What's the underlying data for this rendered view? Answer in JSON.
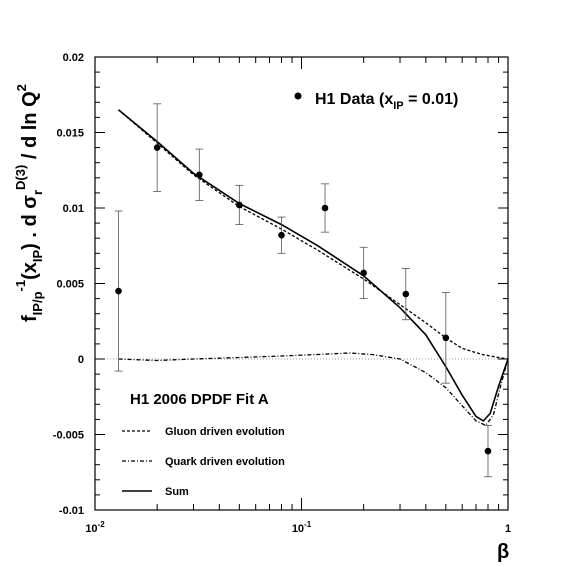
{
  "chart_data": {
    "type": "scatter",
    "title": "",
    "xlabel": "β",
    "ylabel_parts": {
      "f": "f",
      "f_sub": "IP/p",
      "inv": "-1",
      "arg_open": "(x",
      "arg_sub": "IP",
      "arg_close": ") . d σ",
      "sigma_sub": "r",
      "sigma_sup": "D(3)",
      "tail": " / d ln Q",
      "tail_sup": "2"
    },
    "x_scale": "log",
    "xlim": [
      0.01,
      1
    ],
    "ylim": [
      -0.01,
      0.02
    ],
    "x_ticks": [
      {
        "base": "10",
        "exp": "-2"
      },
      {
        "base": "10",
        "exp": "-1"
      },
      {
        "base": "1",
        "exp": ""
      }
    ],
    "y_ticks": [
      "-0.01",
      "-0.005",
      "0",
      "0.005",
      "0.01",
      "0.015",
      "0.02"
    ],
    "y_tick_values": [
      -0.01,
      -0.005,
      0,
      0.005,
      0.01,
      0.015,
      0.02
    ],
    "data_legend": {
      "main": "H1 Data (x",
      "sub": "IP",
      "rest": " = 0.01)"
    },
    "fit_label": "H1 2006 DPDF Fit A",
    "series_names": {
      "gluon": "Gluon driven evolution",
      "quark": "Quark driven evolution",
      "sum": "Sum"
    },
    "data_points": [
      {
        "x": 0.013,
        "y": 0.0045,
        "err": 0.0053
      },
      {
        "x": 0.02,
        "y": 0.014,
        "err": 0.0029
      },
      {
        "x": 0.032,
        "y": 0.0122,
        "err": 0.0017
      },
      {
        "x": 0.05,
        "y": 0.0102,
        "err": 0.0013
      },
      {
        "x": 0.08,
        "y": 0.0082,
        "err": 0.0012
      },
      {
        "x": 0.13,
        "y": 0.01,
        "err": 0.0016
      },
      {
        "x": 0.2,
        "y": 0.0057,
        "err": 0.0017
      },
      {
        "x": 0.32,
        "y": 0.0043,
        "err": 0.0017
      },
      {
        "x": 0.5,
        "y": 0.0014,
        "err": 0.003
      },
      {
        "x": 0.8,
        "y": -0.0061,
        "err": 0.0017
      }
    ],
    "gluon_curve": [
      {
        "x": 0.013,
        "y": 0.0165
      },
      {
        "x": 0.02,
        "y": 0.0143
      },
      {
        "x": 0.03,
        "y": 0.0122
      },
      {
        "x": 0.05,
        "y": 0.0101
      },
      {
        "x": 0.08,
        "y": 0.0086
      },
      {
        "x": 0.12,
        "y": 0.0072
      },
      {
        "x": 0.2,
        "y": 0.0053
      },
      {
        "x": 0.3,
        "y": 0.0036
      },
      {
        "x": 0.4,
        "y": 0.0024
      },
      {
        "x": 0.5,
        "y": 0.0014
      },
      {
        "x": 0.6,
        "y": 0.0007
      },
      {
        "x": 0.75,
        "y": 0.0003
      },
      {
        "x": 0.9,
        "y": 0.0001
      },
      {
        "x": 1.0,
        "y": 0.0
      }
    ],
    "quark_curve": [
      {
        "x": 0.013,
        "y": 0.0
      },
      {
        "x": 0.02,
        "y": -0.0001
      },
      {
        "x": 0.03,
        "y": 0.0
      },
      {
        "x": 0.05,
        "y": 0.0001
      },
      {
        "x": 0.08,
        "y": 0.0002
      },
      {
        "x": 0.12,
        "y": 0.0003
      },
      {
        "x": 0.17,
        "y": 0.0004
      },
      {
        "x": 0.22,
        "y": 0.0003
      },
      {
        "x": 0.3,
        "y": 0.0
      },
      {
        "x": 0.4,
        "y": -0.0009
      },
      {
        "x": 0.5,
        "y": -0.0019
      },
      {
        "x": 0.6,
        "y": -0.0031
      },
      {
        "x": 0.7,
        "y": -0.0041
      },
      {
        "x": 0.78,
        "y": -0.0044
      },
      {
        "x": 0.85,
        "y": -0.0037
      },
      {
        "x": 0.92,
        "y": -0.0018
      },
      {
        "x": 1.0,
        "y": 0.0
      }
    ],
    "sum_curve": [
      {
        "x": 0.013,
        "y": 0.0165
      },
      {
        "x": 0.02,
        "y": 0.0144
      },
      {
        "x": 0.03,
        "y": 0.0123
      },
      {
        "x": 0.05,
        "y": 0.0103
      },
      {
        "x": 0.08,
        "y": 0.0089
      },
      {
        "x": 0.12,
        "y": 0.0075
      },
      {
        "x": 0.2,
        "y": 0.0055
      },
      {
        "x": 0.3,
        "y": 0.0034
      },
      {
        "x": 0.4,
        "y": 0.0016
      },
      {
        "x": 0.5,
        "y": -0.0005
      },
      {
        "x": 0.6,
        "y": -0.0024
      },
      {
        "x": 0.7,
        "y": -0.0038
      },
      {
        "x": 0.76,
        "y": -0.0041
      },
      {
        "x": 0.82,
        "y": -0.0036
      },
      {
        "x": 0.9,
        "y": -0.0018
      },
      {
        "x": 1.0,
        "y": 0.0
      }
    ],
    "colors": {
      "ink": "#000000",
      "zero_line": "#999999",
      "error_bar": "#555555"
    }
  }
}
